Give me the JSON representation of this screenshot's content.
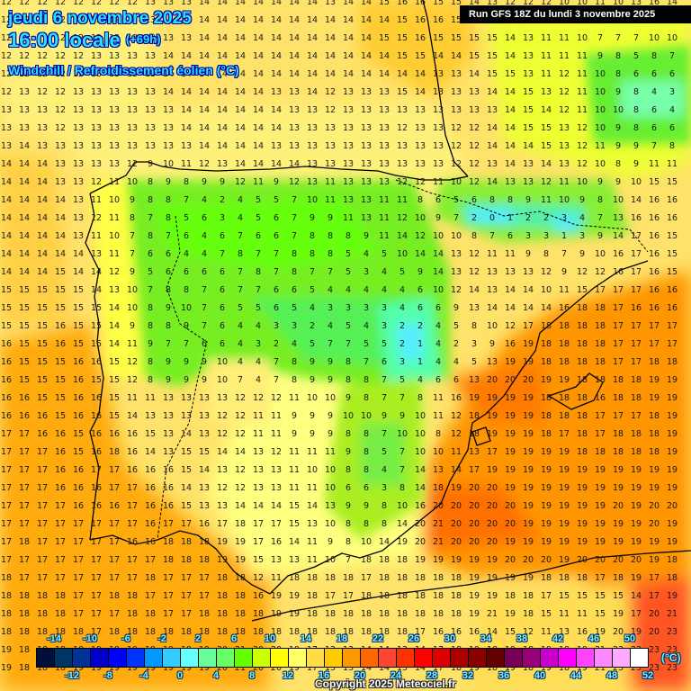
{
  "header": {
    "date": "jeudi 6 novembre 2025",
    "time": "16:00 locale",
    "offset": "(+69h)",
    "parameter": "Windchill / Refroidissement éolien (°C)",
    "run": "Run GFS 18Z du lundi 3 novembre 2025"
  },
  "footer": {
    "copyright": "Copyright 2025 Meteociel.fr"
  },
  "legend": {
    "unit": "(°C)",
    "colors": [
      "#00103a",
      "#003366",
      "#003399",
      "#0000cc",
      "#0000ff",
      "#0033ff",
      "#0099ff",
      "#33ccff",
      "#66ffff",
      "#66ff99",
      "#66ff66",
      "#66ff00",
      "#ccff00",
      "#ffff00",
      "#ffff66",
      "#ffdd44",
      "#ffcc00",
      "#ff9900",
      "#ff6600",
      "#ff4433",
      "#ff3300",
      "#ff0000",
      "#dd0000",
      "#aa0000",
      "#880000",
      "#660000",
      "#770055",
      "#990077",
      "#cc00cc",
      "#ff00ff",
      "#ff44ff",
      "#ff88ff",
      "#ffaaff",
      "#ffffff"
    ],
    "top_labels": [
      "-14",
      "-10",
      "-6",
      "-2",
      "2",
      "6",
      "10",
      "14",
      "18",
      "22",
      "26",
      "30",
      "34",
      "38",
      "42",
      "46",
      "50"
    ],
    "bottom_labels": [
      "-12",
      "-8",
      "-4",
      "0",
      "4",
      "8",
      "12",
      "16",
      "20",
      "24",
      "28",
      "32",
      "36",
      "40",
      "44",
      "48",
      "52"
    ]
  },
  "grid": {
    "rows": [
      "12 12 12 12 12 12 12 12 13 13 13 14 14 14 14 14 14 14 13 14 14 15 16 16 15 15 14 13 12 12 12 10 10 11 10 13 16 14",
      "12 12 12 12 12 12 12 12 13 13 13 14 14 14 14 14 14 14 14 14 14 14 15 16 16 15 16 15 13 12 12 11 10 11 10 13 16 14",
      "12 12 12 12 12 12 12 13 13 13 13 14 14 14 14 14 14 14 14 14 14 15 15 16 15 15 15 15 14 13 11 11 10 7 7 7 10 10",
      "12 12 12 12 12 13 13 13 13 14 14 14 14 14 14 14 14 14 14 14 14 14 15 15 14 14 15 15 14 13 11 11 11 9 8 5 8 7",
      "12 12 12 12 12 13 13 13 13 14 14 14 14 14 14 14 14 14 14 14 14 14 14 14 13 13 14 15 15 13 11 12 11 10 8 6 6 6",
      "12 13 12 12 13 13 13 13 13 14 14 14 14 14 14 13 13 14 12 13 13 13 15 14 13 13 13 14 14 15 13 12 11 10 9 8 4 3",
      "13 13 13 12 13 13 13 13 13 13 14 14 14 14 14 14 13 13 12 13 13 13 13 13 13 13 13 13 14 15 14 12 11 10 10 8 6 4",
      "13 13 13 12 13 13 13 13 13 13 14 14 14 14 14 14 13 13 13 13 13 13 12 13 13 12 12 14 14 15 15 13 12 10 9 8 6 6",
      "13 14 13 13 13 13 13 13 13 13 13 14 14 14 14 13 13 13 13 13 13 13 13 13 13 12 12 14 14 14 15 13 12 11 9 9 7 8",
      "14 14 14 13 13 13 13 12 9 10 11 12 13 14 14 14 14 13 13 13 13 13 13 13 13 12 12 13 14 13 14 13 12 10 8 9 11 11",
      "14 14 14 13 13 12 11 10 8 9 8 9 9 12 11 9 12 13 11 13 13 13 12 12 11 10 12 14 13 13 12 11 10 9 9 10 15 15",
      "14 14 14 14 13 11 10 9 8 8 7 4 2 4 5 5 7 10 11 13 13 11 11 8 6 5 6 8 8 9 11 10 9 8 10 14 16 16",
      "14 14 14 14 13 12 11 8 7 8 5 6 3 4 5 6 7 9 9 11 13 11 12 10 9 7 2 0 1 2 2 3 4 7 13 16 16 16",
      "14 14 14 14 13 11 10 7 8 7 6 4 6 7 6 6 7 8 8 8 9 11 14 12 10 10 8 7 6 3 3 1 3 9 14 17 16 15",
      "14 14 14 14 14 13 11 7 6 6 4 4 7 8 7 7 8 8 8 5 4 5 10 14 14 13 12 11 11 9 8 7 9 10 16 17 16 15",
      "14 14 14 15 14 14 12 9 5 6 6 6 6 7 8 7 8 7 7 5 3 4 5 9 14 13 12 13 13 13 12 9 12 12 16 17 16 15",
      "15 15 15 15 15 14 13 10 7 8 8 7 6 7 7 6 6 5 4 4 4 4 4 6 10 12 14 13 14 14 10 11 15 17 17 17 16 16",
      "15 15 15 15 15 15 14 10 8 9 10 7 6 5 5 6 5 4 3 3 3 3 4 6 6 9 13 14 14 14 14 16 18 18 17 16 16 16",
      "15 15 15 16 15 15 14 9 8 8 9 7 6 4 4 3 3 2 4 5 4 3 2 2 4 5 8 10 12 17 18 18 18 18 17 17 17 17",
      "16 15 15 16 15 15 14 11 9 7 7 6 6 4 3 2 4 5 7 7 5 5 2 1 4 2 3 9 16 19 18 18 18 18 17 17 17 17",
      "16 15 15 15 16 16 15 12 8 9 9 9 10 4 4 7 8 9 9 8 7 6 3 1 4 4 5 13 19 19 18 18 18 18 17 17 18 18",
      "16 15 15 15 16 15 15 12 8 9 9 9 10 7 4 7 8 9 9 8 8 7 5 4 6 6 13 20 20 20 19 19 18 18 18 18 19 19",
      "16 16 15 15 16 16 15 11 11 13 13 13 13 12 12 12 11 10 10 9 8 7 7 8 11 16 19 19 19 19 18 18 18 16 18 18 19 19",
      "16 16 16 15 16 16 15 14 13 13 13 13 12 12 11 11 9 9 9 10 10 9 9 10 11 12 18 19 19 19 18 18 18 17 17 17 18 19",
      "17 17 16 16 15 16 16 16 15 13 14 13 12 12 11 11 9 9 9 8 8 7 10 10 8 12 18 19 19 19 18 17 18 17 18 18 18 19",
      "17 17 17 16 15 16 18 16 14 13 15 15 14 14 13 12 11 11 11 9 8 5 7 10 10 11 13 17 19 19 19 19 18 18 18 18 18 19",
      "17 17 17 16 16 17 17 16 16 16 15 14 13 12 13 13 11 10 10 8 8 4 7 14 13 14 17 19 19 19 19 19 19 19 19 19 19 19",
      "17 17 17 16 16 16 17 17 16 16 14 13 12 12 13 13 11 11 10 6 6 3 8 14 18 19 20 20 19 19 19 19 19 19 19 19 19 19",
      "17 17 17 17 16 16 16 17 16 16 15 13 13 14 14 14 15 14 13 9 9 8 10 16 20 20 20 20 20 19 19 19 19 19 20 19 20 20",
      "17 17 17 17 17 17 17 17 16 17 17 16 17 18 17 17 15 13 10 8 8 8 14 20 21 20 20 20 20 19 19 19 19 19 19 19 20 19",
      "17 18 17 17 17 17 17 16 16 18 18 18 19 19 17 16 14 11 9 8 10 14 19 20 21 20 20 20 19 19 19 19 19 19 19 19 19 19",
      "17 17 17 17 17 17 17 17 17 18 18 18 19 19 15 13 13 11 10 7 18 18 18 19 19 19 19 19 20 20 20 19 20 20 20 20 19 18",
      "18 17 17 17 17 17 17 17 18 17 17 17 18 18 12 11 18 18 18 18 17 18 18 18 18 18 19 19 19 19 18 18 18 17 18 19 17 18",
      "18 18 18 18 17 17 18 18 17 17 17 17 18 18 16 19 19 18 17 17 18 18 18 18 18 18 19 19 18 18 17 15 15 15 15 14 17 19",
      "18 18 18 18 17 17 17 18 18 17 17 18 18 18 18 19 19 18 18 18 18 18 18 18 18 18 19 21 19 18 15 11 11 15 19 17 20 21",
      "18 18 18 18 18 17 18 18 18 18 18 18 18 18 18 18 18 18 18 18 18 18 18 17 16 16 16 14 15 12 11 13 16 19 20 19 20 23",
      "19 18 18 18 18 19 19 19 19 19 19 19 20 21 20 20 19 17 13 13 14 14 13 14 17 18 19 18 19 18 19 18 19 21 23 23 23 23",
      "19 18 18 18 19 19 19 19 19 19 19 19 20 21 20 20 19 17 13 13 14 14 13 14 17 18 19 18 19 18 19 18 19 21 23 23 23 23"
    ]
  }
}
